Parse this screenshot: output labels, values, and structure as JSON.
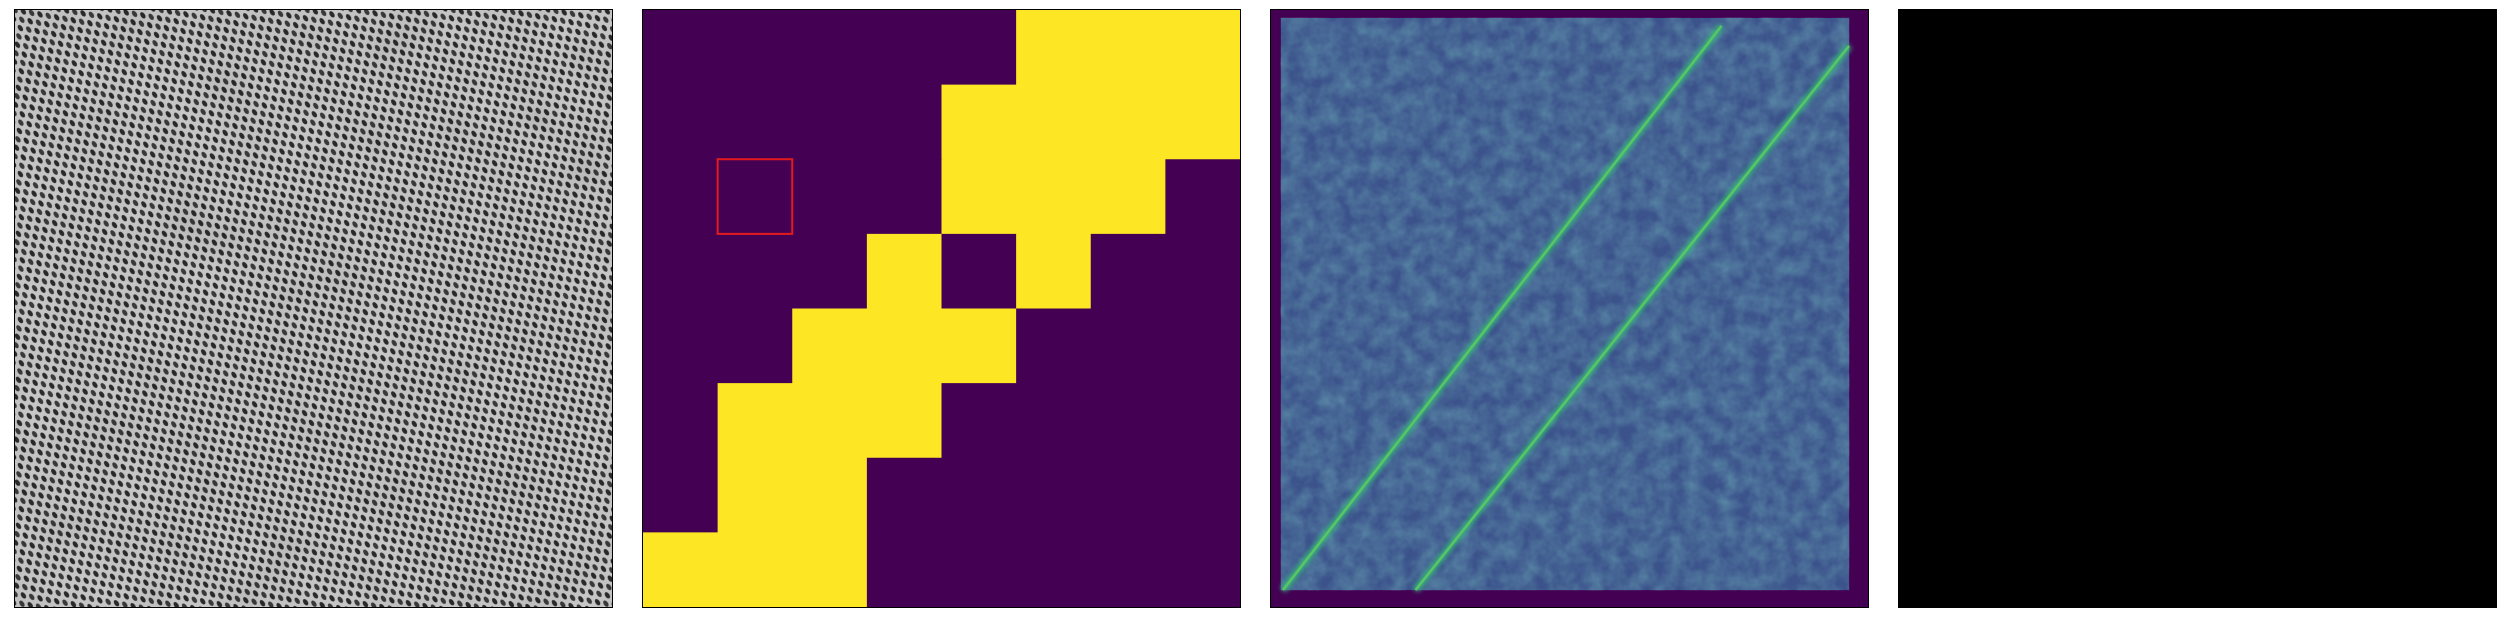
{
  "panels": [
    {
      "id": "texture-image",
      "kind": "grayscale-texture",
      "colormap": "gray"
    },
    {
      "id": "patch-mask",
      "kind": "binary-mask",
      "colormap": "viridis",
      "grid_size": 8,
      "colors": {
        "off": "#440154",
        "on": "#fde725",
        "highlight": "#e41a1c"
      },
      "mask": [
        [
          0,
          0,
          0,
          0,
          0,
          1,
          1,
          1
        ],
        [
          0,
          0,
          0,
          0,
          1,
          1,
          1,
          1
        ],
        [
          0,
          0,
          0,
          0,
          1,
          1,
          1,
          0
        ],
        [
          0,
          0,
          0,
          1,
          0,
          1,
          0,
          0
        ],
        [
          0,
          0,
          1,
          1,
          1,
          0,
          0,
          0
        ],
        [
          0,
          1,
          1,
          1,
          0,
          0,
          0,
          0
        ],
        [
          0,
          1,
          1,
          0,
          0,
          0,
          0,
          0
        ],
        [
          1,
          1,
          1,
          0,
          0,
          0,
          0,
          0
        ]
      ],
      "highlight_cell": {
        "row": 2,
        "col": 1
      }
    },
    {
      "id": "similarity-map",
      "kind": "heatmap",
      "colormap": "viridis",
      "colors": {
        "background": "#3b528b",
        "frame": "#440154",
        "peak": "#5ec962"
      }
    },
    {
      "id": "empty-output",
      "kind": "blank",
      "colors": {
        "fill": "#000000"
      }
    }
  ]
}
